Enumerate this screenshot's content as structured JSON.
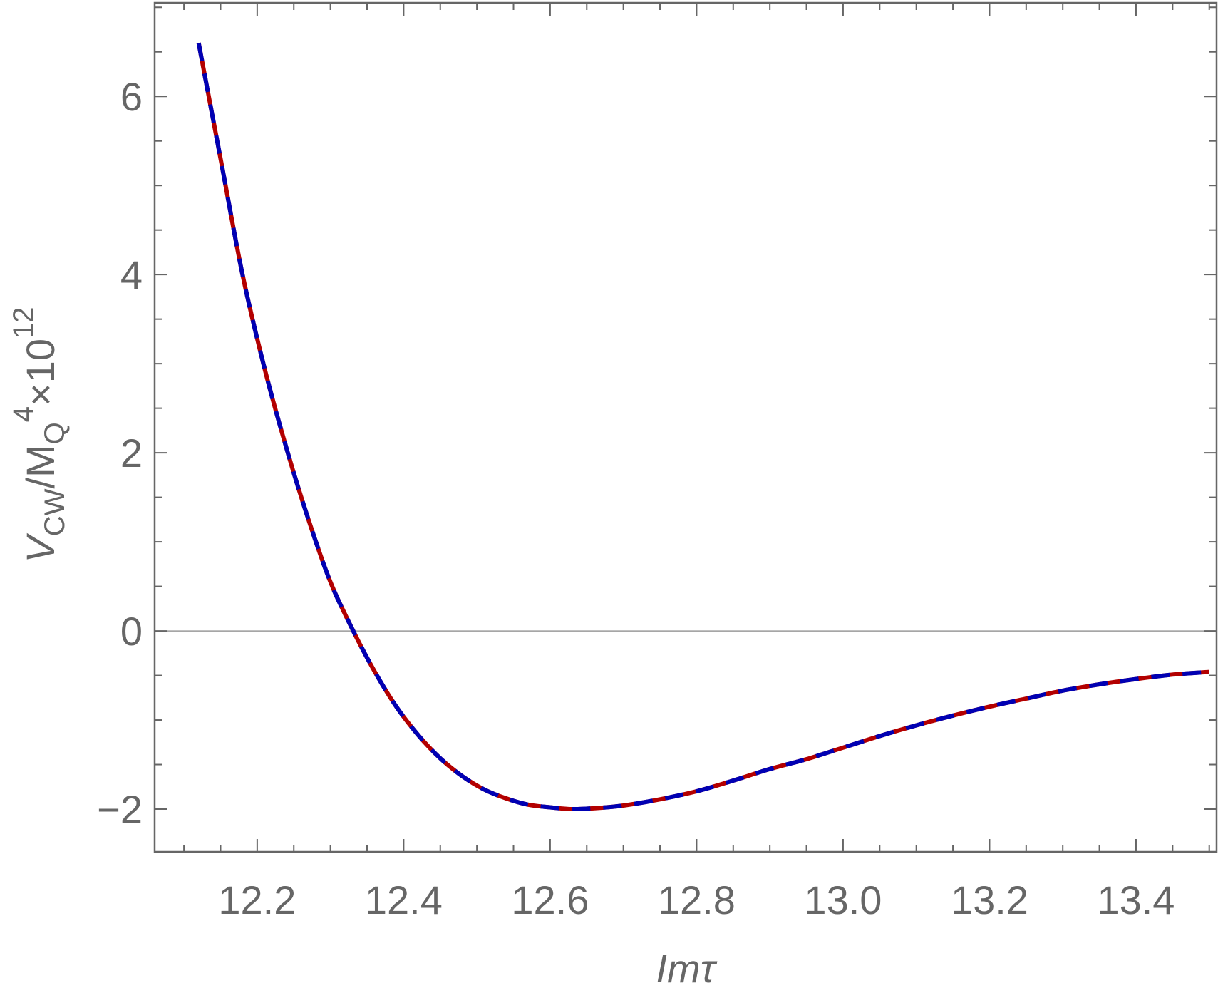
{
  "chart_data": {
    "type": "line",
    "xlabel": "Imτ",
    "ylabel": {
      "base": "V",
      "base_sub": "CW",
      "mid": "/M",
      "mid_sub": "Q",
      "mid_sup": "4",
      "tail": "×10",
      "tail_sup": "12"
    },
    "xlim": [
      12.06,
      13.51
    ],
    "ylim": [
      -2.48,
      7.05
    ],
    "x_ticks": [
      12.2,
      12.4,
      12.6,
      12.8,
      13.0,
      13.2,
      13.4
    ],
    "x_tick_labels": [
      "12.2",
      "12.4",
      "12.6",
      "12.8",
      "13.0",
      "13.2",
      "13.4"
    ],
    "y_ticks": [
      -2,
      0,
      2,
      4,
      6
    ],
    "y_tick_labels": [
      "−2",
      "0",
      "2",
      "4",
      "6"
    ],
    "x_minor_step": 0.05,
    "y_minor_step": 0.5,
    "grid": false,
    "zero_line": true,
    "frame": true,
    "series": [
      {
        "style": "solid",
        "color": "#b30000",
        "x": [
          12.12,
          12.15,
          12.18,
          12.21,
          12.24,
          12.27,
          12.3,
          12.33,
          12.36,
          12.39,
          12.42,
          12.45,
          12.48,
          12.51,
          12.54,
          12.57,
          12.6,
          12.63,
          12.66,
          12.7,
          12.75,
          12.8,
          12.85,
          12.9,
          12.95,
          13.0,
          13.05,
          13.1,
          13.15,
          13.2,
          13.25,
          13.3,
          13.35,
          13.4,
          13.45,
          13.5
        ],
        "y": [
          6.6,
          5.3,
          4.0,
          2.95,
          2.05,
          1.25,
          0.55,
          0.02,
          -0.45,
          -0.85,
          -1.17,
          -1.43,
          -1.63,
          -1.78,
          -1.88,
          -1.95,
          -1.98,
          -2.0,
          -1.99,
          -1.96,
          -1.89,
          -1.8,
          -1.68,
          -1.55,
          -1.44,
          -1.31,
          -1.18,
          -1.06,
          -0.95,
          -0.85,
          -0.76,
          -0.67,
          -0.6,
          -0.54,
          -0.49,
          -0.46
        ]
      },
      {
        "style": "dashed",
        "color": "#0000b3",
        "x": [
          12.12,
          12.15,
          12.18,
          12.21,
          12.24,
          12.27,
          12.3,
          12.33,
          12.36,
          12.39,
          12.42,
          12.45,
          12.48,
          12.51,
          12.54,
          12.57,
          12.6,
          12.63,
          12.66,
          12.7,
          12.75,
          12.8,
          12.85,
          12.9,
          12.95,
          13.0,
          13.05,
          13.1,
          13.15,
          13.2,
          13.25,
          13.3,
          13.35,
          13.4,
          13.45,
          13.5
        ],
        "y": [
          6.6,
          5.3,
          4.0,
          2.95,
          2.05,
          1.25,
          0.55,
          0.02,
          -0.45,
          -0.85,
          -1.17,
          -1.43,
          -1.63,
          -1.78,
          -1.88,
          -1.95,
          -1.98,
          -2.0,
          -1.99,
          -1.96,
          -1.89,
          -1.8,
          -1.68,
          -1.55,
          -1.44,
          -1.31,
          -1.18,
          -1.06,
          -0.95,
          -0.85,
          -0.76,
          -0.67,
          -0.6,
          -0.54,
          -0.49,
          -0.46
        ]
      }
    ]
  }
}
